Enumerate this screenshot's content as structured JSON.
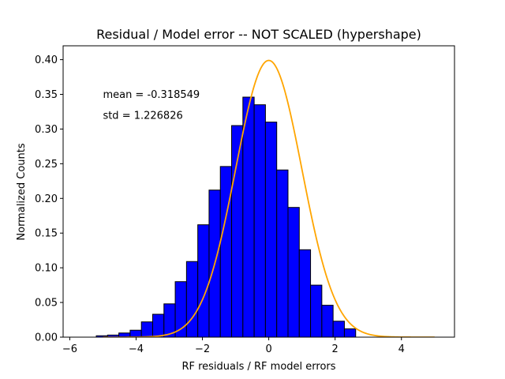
{
  "chart_data": {
    "type": "bar",
    "title": "Residual / Model error -- NOT SCALED (hypershape)",
    "xlabel": "RF residuals / RF model errors",
    "ylabel": "Normalized Counts",
    "xlim": [
      -6.2,
      5.6
    ],
    "ylim": [
      0,
      0.42
    ],
    "xticks": [
      -6,
      -4,
      -2,
      0,
      2,
      4
    ],
    "xtick_labels": [
      "−6",
      "−4",
      "−2",
      "0",
      "2",
      "4"
    ],
    "yticks": [
      0.0,
      0.05,
      0.1,
      0.15,
      0.2,
      0.25,
      0.3,
      0.35,
      0.4
    ],
    "ytick_labels": [
      "0.00",
      "0.05",
      "0.10",
      "0.15",
      "0.20",
      "0.25",
      "0.30",
      "0.35",
      "0.40"
    ],
    "grid": false,
    "histogram": {
      "bin_edges": [
        -5.2,
        -4.86,
        -4.52,
        -4.18,
        -3.84,
        -3.5,
        -3.16,
        -2.82,
        -2.48,
        -2.14,
        -1.8,
        -1.46,
        -1.12,
        -0.78,
        -0.44,
        -0.1,
        0.24,
        0.58,
        0.92,
        1.26,
        1.6,
        1.94,
        2.28,
        2.62,
        2.96
      ],
      "values": [
        0.002,
        0.003,
        0.006,
        0.01,
        0.022,
        0.033,
        0.048,
        0.08,
        0.109,
        0.162,
        0.212,
        0.246,
        0.305,
        0.346,
        0.335,
        0.31,
        0.241,
        0.187,
        0.126,
        0.075,
        0.046,
        0.023,
        0.012,
        0.0
      ],
      "bar_color": "#0000ff",
      "edge_color": "#000000"
    },
    "curve": {
      "type": "normal_pdf",
      "mean": 0,
      "std": 1,
      "x_range": [
        -5,
        5
      ],
      "color": "#ffa500"
    },
    "annotations": [
      {
        "text": "mean = -0.318549",
        "x": -5.0,
        "y": 0.35
      },
      {
        "text": "std = 1.226826",
        "x": -5.0,
        "y": 0.32
      }
    ]
  }
}
